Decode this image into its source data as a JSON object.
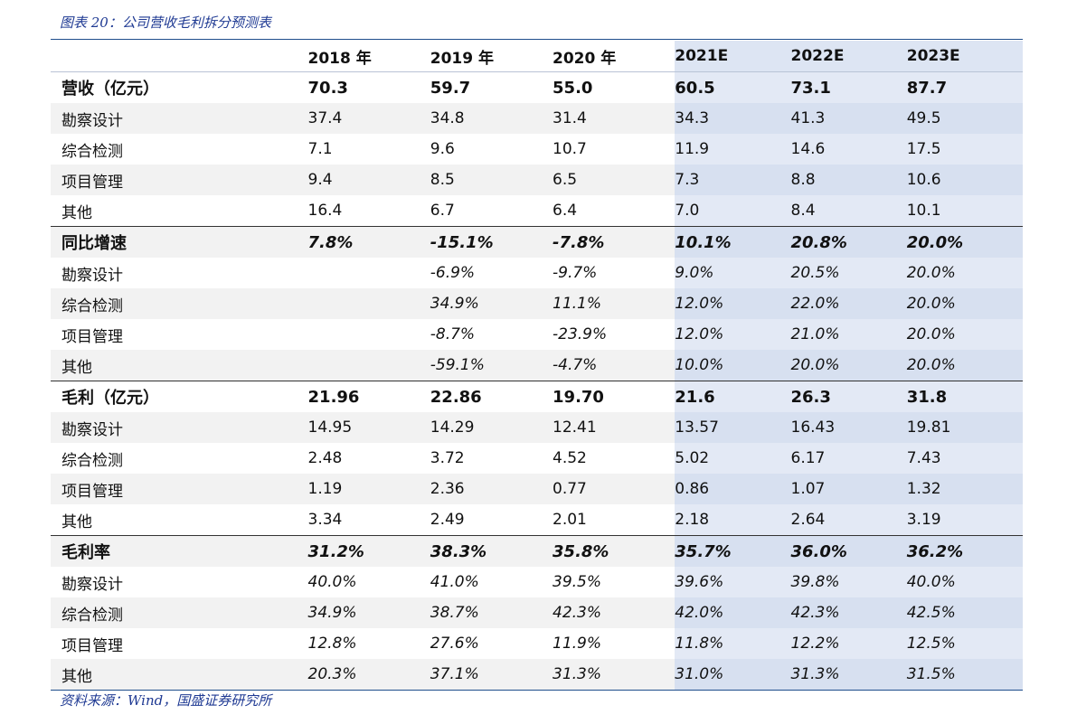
{
  "caption": "图表 20：公司营收毛利拆分预测表",
  "source": "资料来源：Wind，国盛证券研究所",
  "header": {
    "blank": "",
    "years": [
      "2018 年",
      "2019 年",
      "2020 年",
      "2021E",
      "2022E",
      "2023E"
    ]
  },
  "rows": [
    {
      "label": "营收（亿元）",
      "values": [
        "70.3",
        "59.7",
        "55.0",
        "60.5",
        "73.1",
        "87.7"
      ],
      "group": true,
      "italic": false,
      "sep": false
    },
    {
      "label": "勘察设计",
      "values": [
        "37.4",
        "34.8",
        "31.4",
        "34.3",
        "41.3",
        "49.5"
      ],
      "group": false,
      "italic": false,
      "sep": false
    },
    {
      "label": "综合检测",
      "values": [
        "7.1",
        "9.6",
        "10.7",
        "11.9",
        "14.6",
        "17.5"
      ],
      "group": false,
      "italic": false,
      "sep": false
    },
    {
      "label": "项目管理",
      "values": [
        "9.4",
        "8.5",
        "6.5",
        "7.3",
        "8.8",
        "10.6"
      ],
      "group": false,
      "italic": false,
      "sep": false
    },
    {
      "label": "其他",
      "values": [
        "16.4",
        "6.7",
        "6.4",
        "7.0",
        "8.4",
        "10.1"
      ],
      "group": false,
      "italic": false,
      "sep": false
    },
    {
      "label": "同比增速",
      "values": [
        "7.8%",
        "-15.1%",
        "-7.8%",
        "10.1%",
        "20.8%",
        "20.0%"
      ],
      "group": true,
      "italic": true,
      "sep": true
    },
    {
      "label": "勘察设计",
      "values": [
        "",
        "-6.9%",
        "-9.7%",
        "9.0%",
        "20.5%",
        "20.0%"
      ],
      "group": false,
      "italic": true,
      "sep": false
    },
    {
      "label": "综合检测",
      "values": [
        "",
        "34.9%",
        "11.1%",
        "12.0%",
        "22.0%",
        "20.0%"
      ],
      "group": false,
      "italic": true,
      "sep": false
    },
    {
      "label": "项目管理",
      "values": [
        "",
        "-8.7%",
        "-23.9%",
        "12.0%",
        "21.0%",
        "20.0%"
      ],
      "group": false,
      "italic": true,
      "sep": false
    },
    {
      "label": "其他",
      "values": [
        "",
        "-59.1%",
        "-4.7%",
        "10.0%",
        "20.0%",
        "20.0%"
      ],
      "group": false,
      "italic": true,
      "sep": false
    },
    {
      "label": "毛利（亿元）",
      "values": [
        "21.96",
        "22.86",
        "19.70",
        "21.6",
        "26.3",
        "31.8"
      ],
      "group": true,
      "italic": false,
      "sep": true
    },
    {
      "label": "勘察设计",
      "values": [
        "14.95",
        "14.29",
        "12.41",
        "13.57",
        "16.43",
        "19.81"
      ],
      "group": false,
      "italic": false,
      "sep": false
    },
    {
      "label": "综合检测",
      "values": [
        "2.48",
        "3.72",
        "4.52",
        "5.02",
        "6.17",
        "7.43"
      ],
      "group": false,
      "italic": false,
      "sep": false
    },
    {
      "label": "项目管理",
      "values": [
        "1.19",
        "2.36",
        "0.77",
        "0.86",
        "1.07",
        "1.32"
      ],
      "group": false,
      "italic": false,
      "sep": false
    },
    {
      "label": "其他",
      "values": [
        "3.34",
        "2.49",
        "2.01",
        "2.18",
        "2.64",
        "3.19"
      ],
      "group": false,
      "italic": false,
      "sep": false
    },
    {
      "label": "毛利率",
      "values": [
        "31.2%",
        "38.3%",
        "35.8%",
        "35.7%",
        "36.0%",
        "36.2%"
      ],
      "group": true,
      "italic": true,
      "sep": true
    },
    {
      "label": "勘察设计",
      "values": [
        "40.0%",
        "41.0%",
        "39.5%",
        "39.6%",
        "39.8%",
        "40.0%"
      ],
      "group": false,
      "italic": true,
      "sep": false
    },
    {
      "label": "综合检测",
      "values": [
        "34.9%",
        "38.7%",
        "42.3%",
        "42.0%",
        "42.3%",
        "42.5%"
      ],
      "group": false,
      "italic": true,
      "sep": false
    },
    {
      "label": "项目管理",
      "values": [
        "12.8%",
        "27.6%",
        "11.9%",
        "11.8%",
        "12.2%",
        "12.5%"
      ],
      "group": false,
      "italic": true,
      "sep": false
    },
    {
      "label": "其他",
      "values": [
        "20.3%",
        "37.1%",
        "31.3%",
        "31.0%",
        "31.3%",
        "31.5%"
      ],
      "group": false,
      "italic": true,
      "sep": false
    }
  ]
}
